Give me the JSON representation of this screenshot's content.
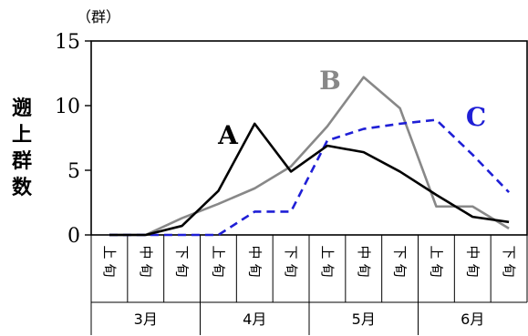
{
  "chart_data": {
    "type": "line",
    "ylabel": "遡上群数",
    "yunit": "（群）",
    "ylim": [
      0,
      15
    ],
    "yticks": [
      0,
      5,
      10,
      15
    ],
    "categories": [
      "上旬",
      "中旬",
      "下旬",
      "上旬",
      "中旬",
      "下旬",
      "上旬",
      "中旬",
      "下旬",
      "上旬",
      "中旬",
      "下旬"
    ],
    "groups": [
      {
        "label": "3月",
        "span": 3
      },
      {
        "label": "4月",
        "span": 3
      },
      {
        "label": "5月",
        "span": 3
      },
      {
        "label": "6月",
        "span": 3
      }
    ],
    "series": [
      {
        "name": "A",
        "color": "#000000",
        "style": "solid",
        "values": [
          0,
          0,
          0.7,
          3.4,
          8.6,
          4.9,
          6.9,
          6.4,
          4.9,
          3.1,
          1.4,
          1.0
        ]
      },
      {
        "name": "B",
        "color": "#888888",
        "style": "solid",
        "values": [
          0,
          0,
          1.3,
          2.4,
          3.6,
          5.3,
          8.4,
          12.2,
          9.8,
          2.2,
          2.2,
          0.5
        ]
      },
      {
        "name": "C",
        "color": "#1f1fd6",
        "style": "dashed",
        "values": [
          0,
          0,
          0,
          0,
          1.8,
          1.8,
          7.3,
          8.2,
          8.6,
          8.9,
          6.2,
          3.3
        ]
      }
    ],
    "grid": false,
    "legend": "inline"
  }
}
